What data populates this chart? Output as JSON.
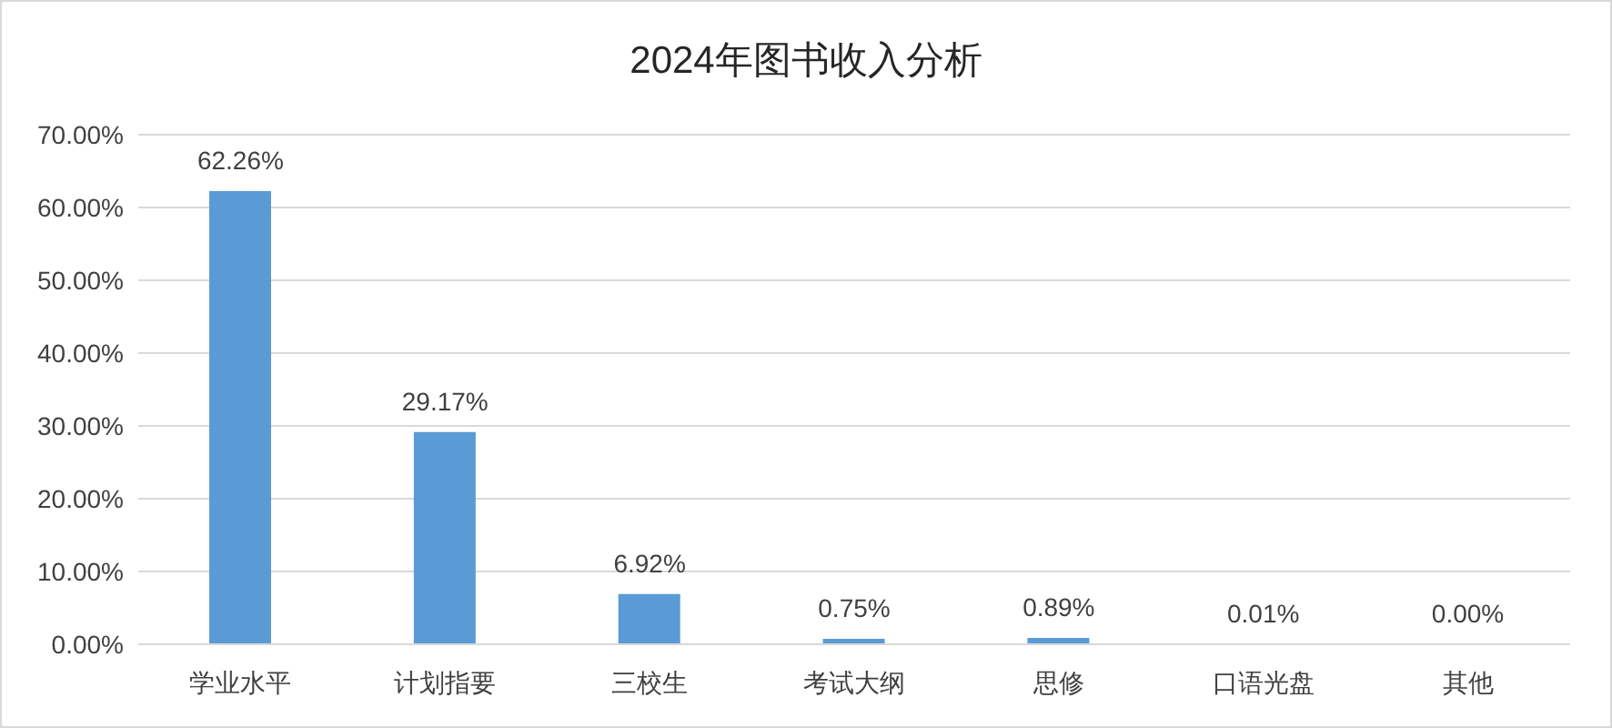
{
  "chart_data": {
    "type": "bar",
    "title": "2024年图书收入分析",
    "categories": [
      "学业水平",
      "计划指要",
      "三校生",
      "考试大纲",
      "思修",
      "口语光盘",
      "其他"
    ],
    "values": [
      62.26,
      29.17,
      6.92,
      0.75,
      0.89,
      0.01,
      0.0
    ],
    "value_labels": [
      "62.26%",
      "29.17%",
      "6.92%",
      "0.75%",
      "0.89%",
      "0.01%",
      "0.00%"
    ],
    "color": "#5b9bd5",
    "ylim": [
      0,
      70
    ],
    "yticks": [
      {
        "value": 0,
        "label": "0.00%"
      },
      {
        "value": 10,
        "label": "10.00%"
      },
      {
        "value": 20,
        "label": "20.00%"
      },
      {
        "value": 30,
        "label": "30.00%"
      },
      {
        "value": 40,
        "label": "40.00%"
      },
      {
        "value": 50,
        "label": "50.00%"
      },
      {
        "value": 60,
        "label": "60.00%"
      },
      {
        "value": 70,
        "label": "70.00%"
      }
    ],
    "grid": "y"
  }
}
